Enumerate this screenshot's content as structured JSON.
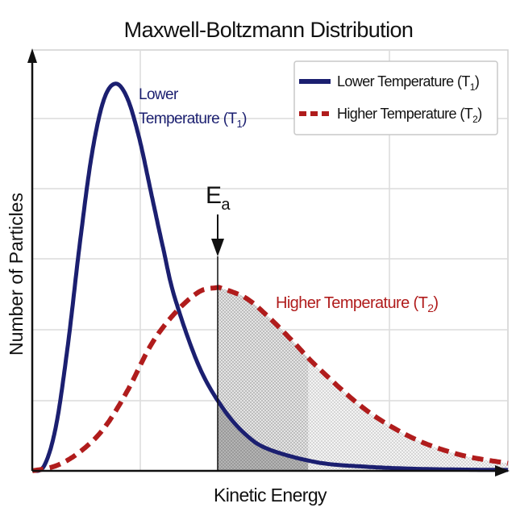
{
  "chart_data": {
    "type": "line",
    "title": "Maxwell-Boltzmann Distribution",
    "xlabel": "Kinetic Energy",
    "ylabel": "Number of Particles",
    "xlim": [
      0,
      10
    ],
    "ylim": [
      0,
      1
    ],
    "grid": true,
    "legend_position": "top-right",
    "series": [
      {
        "name": "Lower Temperature (T1)",
        "color": "#1b1f70",
        "style": "solid",
        "x": [
          0,
          0.25,
          0.5,
          0.75,
          1,
          1.25,
          1.5,
          1.75,
          2,
          2.25,
          2.5,
          2.75,
          3,
          3.5,
          4,
          4.5,
          5,
          6,
          7,
          8,
          9,
          10
        ],
        "y": [
          0,
          0.012,
          0.107,
          0.3,
          0.54,
          0.75,
          0.88,
          0.92,
          0.885,
          0.79,
          0.66,
          0.53,
          0.41,
          0.25,
          0.15,
          0.085,
          0.05,
          0.02,
          0.01,
          0.005,
          0.003,
          0.002
        ]
      },
      {
        "name": "Higher Temperature (T2)",
        "color": "#b01c1c",
        "style": "dashed",
        "x": [
          0,
          0.5,
          1,
          1.5,
          2,
          2.5,
          3,
          3.5,
          3.86,
          4,
          4.5,
          5,
          5.5,
          6,
          7,
          8,
          9,
          10
        ],
        "y": [
          0,
          0.012,
          0.045,
          0.1,
          0.19,
          0.3,
          0.375,
          0.425,
          0.435,
          0.433,
          0.41,
          0.362,
          0.305,
          0.246,
          0.146,
          0.078,
          0.038,
          0.018
        ]
      }
    ],
    "activation_energy": {
      "x": 3.9,
      "label": "E",
      "label_sub": "a"
    },
    "shaded_region_dark_end": 5.8,
    "legend": [
      {
        "text": "Lower Temperature (T",
        "sub": "1",
        "close": ")"
      },
      {
        "text": "Higher Temperature (T",
        "sub": "2",
        "close": ")"
      }
    ],
    "annotations": {
      "lower_line1": "Lower",
      "lower_line2": "Temperature (T",
      "lower_sub": "1",
      "lower_close": ")",
      "higher": "Higher Temperature (T",
      "higher_sub": "2",
      "higher_close": ")"
    }
  }
}
